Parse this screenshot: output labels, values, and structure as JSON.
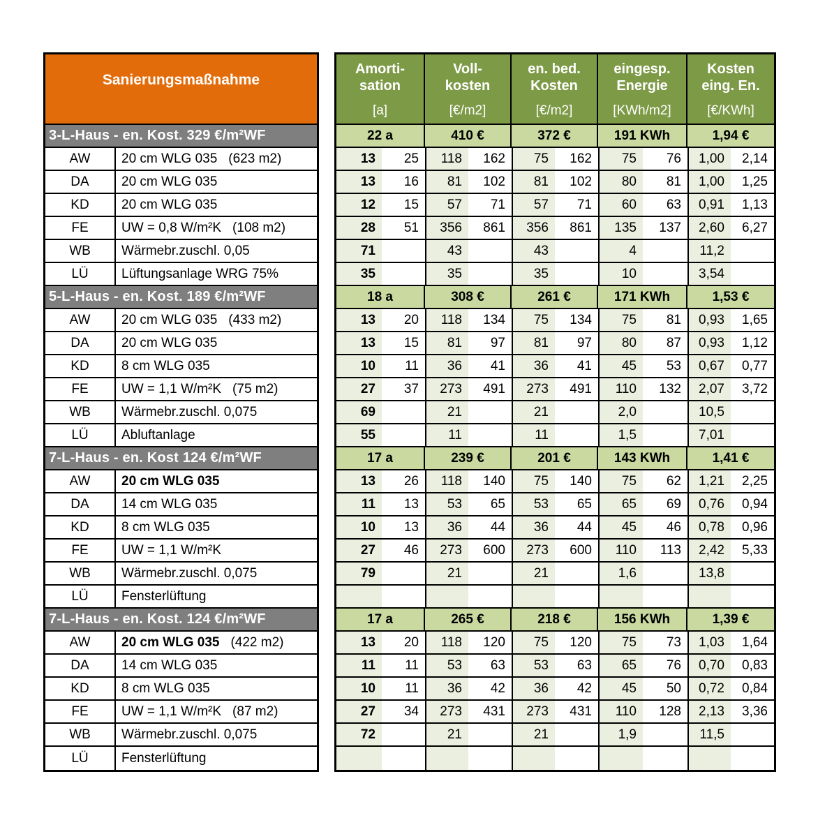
{
  "left_table": {
    "title": "Sanierungsmaßnahme"
  },
  "right_table": {
    "columns": [
      {
        "title": [
          "Amorti-",
          "sation"
        ],
        "unit": "[a]"
      },
      {
        "title": [
          "Voll-",
          "kosten"
        ],
        "unit": "[€/m2]"
      },
      {
        "title": [
          "en. bed.",
          "Kosten"
        ],
        "unit": "[€/m2]"
      },
      {
        "title": [
          "eingesp.",
          "Energie"
        ],
        "unit": "[KWh/m2]"
      },
      {
        "title": [
          "Kosten",
          "eing. En."
        ],
        "unit": "[€/KWh]"
      }
    ]
  },
  "colors": {
    "header_green": "#7D9A46",
    "summary_green": "#C9D9A0",
    "cell_tint": "#EBEFDF",
    "orange": "#E36C0A",
    "section_gray": "#7F7F7F",
    "flag_green": "#1E7E1E",
    "border": "#000000"
  },
  "sections": [
    {
      "header": "3-L-Haus - en. Kost. 329 €/m²WF",
      "summary": [
        "22 a",
        "410 €",
        "372 €",
        "191 KWh",
        "1,94 €"
      ],
      "summary_flag_col": null,
      "rows": [
        {
          "label": "AW",
          "desc": "20 cm WLG 035",
          "area": "(623 m2)",
          "bold_desc": false,
          "flagged": true,
          "values": [
            [
              "13",
              "25"
            ],
            [
              "118",
              "162"
            ],
            [
              "75",
              "162"
            ],
            [
              "75",
              "76"
            ],
            [
              "1,00",
              "2,14"
            ]
          ]
        },
        {
          "label": "DA",
          "desc": "20 cm WLG 035",
          "area": "",
          "bold_desc": false,
          "flagged": true,
          "values": [
            [
              "13",
              "16"
            ],
            [
              "81",
              "102"
            ],
            [
              "81",
              "102"
            ],
            [
              "80",
              "81"
            ],
            [
              "1,00",
              "1,25"
            ]
          ]
        },
        {
          "label": "KD",
          "desc": "20 cm WLG 035",
          "area": "",
          "bold_desc": false,
          "flagged": true,
          "values": [
            [
              "12",
              "15"
            ],
            [
              "57",
              "71"
            ],
            [
              "57",
              "71"
            ],
            [
              "60",
              "63"
            ],
            [
              "0,91",
              "1,13"
            ]
          ]
        },
        {
          "label": "FE",
          "desc": "UW = 0,8 W/m²K",
          "area": "(108 m2)",
          "bold_desc": false,
          "flagged": true,
          "values": [
            [
              "28",
              "51"
            ],
            [
              "356",
              "861"
            ],
            [
              "356",
              "861"
            ],
            [
              "135",
              "137"
            ],
            [
              "2,60",
              "6,27"
            ]
          ]
        },
        {
          "label": "WB",
          "desc": "Wärmebr.zuschl. 0,05",
          "area": "",
          "bold_desc": false,
          "flagged": false,
          "values": [
            [
              "71",
              ""
            ],
            [
              "43",
              ""
            ],
            [
              "43",
              ""
            ],
            [
              "4",
              ""
            ],
            [
              "11,2",
              ""
            ]
          ]
        },
        {
          "label": "LÜ",
          "desc": "Lüftungsanlage WRG 75%",
          "area": "",
          "bold_desc": false,
          "flagged": false,
          "values": [
            [
              "35",
              ""
            ],
            [
              "35",
              ""
            ],
            [
              "35",
              ""
            ],
            [
              "10",
              ""
            ],
            [
              "3,54",
              ""
            ]
          ]
        }
      ]
    },
    {
      "header": "5-L-Haus - en. Kost. 189 €/m²WF",
      "summary": [
        "18 a",
        "308 €",
        "261 €",
        "171 KWh",
        "1,53 €"
      ],
      "summary_flag_col": 2,
      "rows": [
        {
          "label": "AW",
          "desc": "20 cm WLG 035",
          "area": "(433 m2)",
          "bold_desc": false,
          "flagged": true,
          "values": [
            [
              "13",
              "20"
            ],
            [
              "118",
              "134"
            ],
            [
              "75",
              "134"
            ],
            [
              "75",
              "81"
            ],
            [
              "0,93",
              "1,65"
            ]
          ]
        },
        {
          "label": "DA",
          "desc": "20 cm WLG 035",
          "area": "",
          "bold_desc": false,
          "flagged": true,
          "values": [
            [
              "13",
              "15"
            ],
            [
              "81",
              "97"
            ],
            [
              "81",
              "97"
            ],
            [
              "80",
              "87"
            ],
            [
              "0,93",
              "1,12"
            ]
          ]
        },
        {
          "label": "KD",
          "desc": "8 cm WLG 035",
          "area": "",
          "bold_desc": false,
          "flagged": true,
          "values": [
            [
              "10",
              "11"
            ],
            [
              "36",
              "41"
            ],
            [
              "36",
              "41"
            ],
            [
              "45",
              "53"
            ],
            [
              "0,67",
              "0,77"
            ]
          ]
        },
        {
          "label": "FE",
          "desc": "UW = 1,1 W/m²K",
          "area": "(75 m2)",
          "bold_desc": false,
          "flagged": true,
          "values": [
            [
              "27",
              "37"
            ],
            [
              "273",
              "491"
            ],
            [
              "273",
              "491"
            ],
            [
              "110",
              "132"
            ],
            [
              "2,07",
              "3,72"
            ]
          ]
        },
        {
          "label": "WB",
          "desc": "Wärmebr.zuschl. 0,075",
          "area": "",
          "bold_desc": false,
          "flagged": false,
          "values": [
            [
              "69",
              ""
            ],
            [
              "21",
              ""
            ],
            [
              "21",
              ""
            ],
            [
              "2,0",
              ""
            ],
            [
              "10,5",
              ""
            ]
          ]
        },
        {
          "label": "LÜ",
          "desc": "Abluftanlage",
          "area": "",
          "bold_desc": false,
          "flagged": false,
          "values": [
            [
              "55",
              ""
            ],
            [
              "11",
              ""
            ],
            [
              "11",
              ""
            ],
            [
              "1,5",
              ""
            ],
            [
              "7,01",
              ""
            ]
          ]
        }
      ]
    },
    {
      "header": "7-L-Haus - en. Kost 124 €/m²WF",
      "summary": [
        "17 a",
        "239 €",
        "201 €",
        "143 KWh",
        "1,41 €"
      ],
      "summary_flag_col": 2,
      "rows": [
        {
          "label": "AW",
          "desc": "20 cm WLG 035",
          "area": "",
          "bold_desc": true,
          "flagged": true,
          "values": [
            [
              "13",
              "26"
            ],
            [
              "118",
              "140"
            ],
            [
              "75",
              "140"
            ],
            [
              "75",
              "62"
            ],
            [
              "1,21",
              "2,25"
            ]
          ]
        },
        {
          "label": "DA",
          "desc": "14 cm WLG 035",
          "area": "",
          "bold_desc": false,
          "flagged": true,
          "values": [
            [
              "11",
              "13"
            ],
            [
              "53",
              "65"
            ],
            [
              "53",
              "65"
            ],
            [
              "65",
              "69"
            ],
            [
              "0,76",
              "0,94"
            ]
          ]
        },
        {
          "label": "KD",
          "desc": "8 cm WLG 035",
          "area": "",
          "bold_desc": false,
          "flagged": true,
          "values": [
            [
              "10",
              "13"
            ],
            [
              "36",
              "44"
            ],
            [
              "36",
              "44"
            ],
            [
              "45",
              "46"
            ],
            [
              "0,78",
              "0,96"
            ]
          ]
        },
        {
          "label": "FE",
          "desc": "UW = 1,1 W/m²K",
          "area": "",
          "bold_desc": false,
          "flagged": true,
          "values": [
            [
              "27",
              "46"
            ],
            [
              "273",
              "600"
            ],
            [
              "273",
              "600"
            ],
            [
              "110",
              "113"
            ],
            [
              "2,42",
              "5,33"
            ]
          ]
        },
        {
          "label": "WB",
          "desc": "Wärmebr.zuschl. 0,075",
          "area": "",
          "bold_desc": false,
          "flagged": false,
          "values": [
            [
              "79",
              ""
            ],
            [
              "21",
              ""
            ],
            [
              "21",
              ""
            ],
            [
              "1,6",
              ""
            ],
            [
              "13,8",
              ""
            ]
          ]
        },
        {
          "label": "LÜ",
          "desc": "Fensterlüftung",
          "area": "",
          "bold_desc": false,
          "flagged": false,
          "values": [
            [
              "",
              ""
            ],
            [
              "",
              ""
            ],
            [
              "",
              ""
            ],
            [
              "",
              ""
            ],
            [
              "",
              ""
            ]
          ]
        }
      ]
    },
    {
      "header": "7-L-Haus - en. Kost. 124 €/m²WF",
      "summary": [
        "17 a",
        "265 €",
        "218 €",
        "156 KWh",
        "1,39 €"
      ],
      "summary_flag_col": 2,
      "rows": [
        {
          "label": "AW",
          "desc": "20 cm WLG 035",
          "area": "(422 m2)",
          "bold_desc": true,
          "flagged": true,
          "values": [
            [
              "13",
              "20"
            ],
            [
              "118",
              "120"
            ],
            [
              "75",
              "120"
            ],
            [
              "75",
              "73"
            ],
            [
              "1,03",
              "1,64"
            ]
          ]
        },
        {
          "label": "DA",
          "desc": "14 cm WLG 035",
          "area": "",
          "bold_desc": false,
          "flagged": true,
          "values": [
            [
              "11",
              "11"
            ],
            [
              "53",
              "63"
            ],
            [
              "53",
              "63"
            ],
            [
              "65",
              "76"
            ],
            [
              "0,70",
              "0,83"
            ]
          ]
        },
        {
          "label": "KD",
          "desc": "8 cm WLG 035",
          "area": "",
          "bold_desc": false,
          "flagged": true,
          "values": [
            [
              "10",
              "11"
            ],
            [
              "36",
              "42"
            ],
            [
              "36",
              "42"
            ],
            [
              "45",
              "50"
            ],
            [
              "0,72",
              "0,84"
            ]
          ]
        },
        {
          "label": "FE",
          "desc": "UW = 1,1 W/m²K",
          "area": "(87 m2)",
          "bold_desc": false,
          "flagged": true,
          "values": [
            [
              "27",
              "34"
            ],
            [
              "273",
              "431"
            ],
            [
              "273",
              "431"
            ],
            [
              "110",
              "128"
            ],
            [
              "2,13",
              "3,36"
            ]
          ]
        },
        {
          "label": "WB",
          "desc": "Wärmebr.zuschl. 0,075",
          "area": "",
          "bold_desc": false,
          "flagged": false,
          "values": [
            [
              "72",
              ""
            ],
            [
              "21",
              ""
            ],
            [
              "21",
              ""
            ],
            [
              "1,9",
              ""
            ],
            [
              "11,5",
              ""
            ]
          ]
        },
        {
          "label": "LÜ",
          "desc": "Fensterlüftung",
          "area": "",
          "bold_desc": false,
          "flagged": false,
          "values": [
            [
              "",
              ""
            ],
            [
              "",
              ""
            ],
            [
              "",
              ""
            ],
            [
              "",
              ""
            ],
            [
              "",
              ""
            ]
          ]
        }
      ]
    }
  ]
}
